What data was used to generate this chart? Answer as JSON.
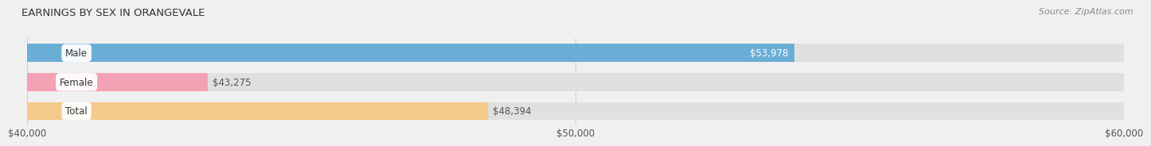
{
  "title": "EARNINGS BY SEX IN ORANGEVALE",
  "source": "Source: ZipAtlas.com",
  "categories": [
    "Male",
    "Female",
    "Total"
  ],
  "values": [
    53978,
    43275,
    48394
  ],
  "bar_colors": [
    "#6aaed6",
    "#f4a0b5",
    "#f5c98a"
  ],
  "label_inside": [
    true,
    false,
    false
  ],
  "value_label_colors": [
    "white",
    "#555555",
    "#555555"
  ],
  "x_min": 40000,
  "x_max": 60000,
  "x_ticks": [
    40000,
    50000,
    60000
  ],
  "x_tick_labels": [
    "$40,000",
    "$50,000",
    "$60,000"
  ],
  "bar_height": 0.62,
  "background_color": "#f0f0f0",
  "bar_bg_color": "#e0e0e0",
  "title_fontsize": 9.5,
  "source_fontsize": 8,
  "label_fontsize": 8.5,
  "tick_fontsize": 8.5,
  "category_fontsize": 8.5
}
